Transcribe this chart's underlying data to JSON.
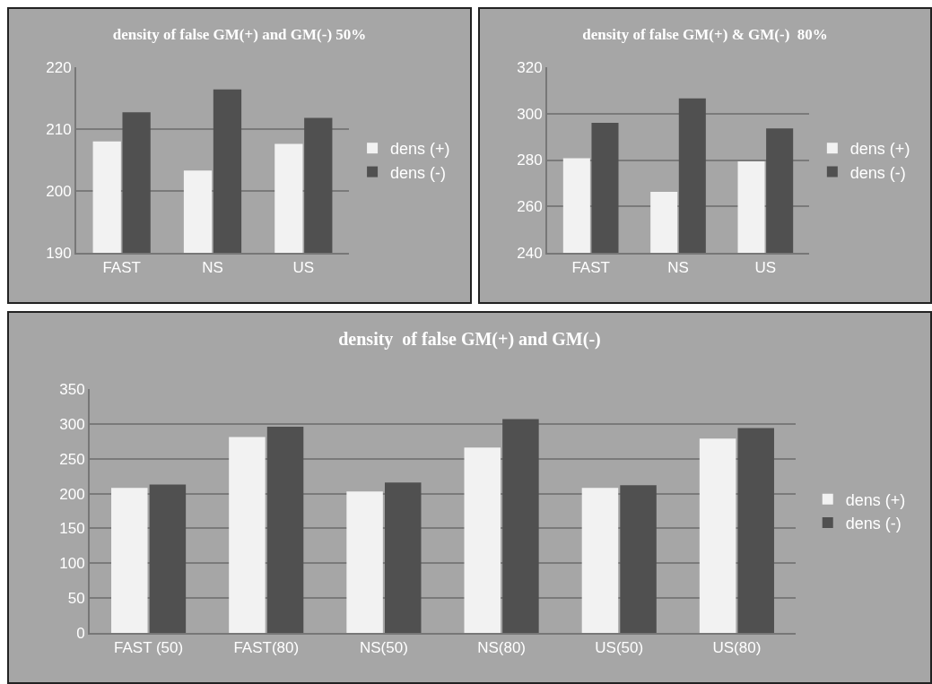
{
  "chart_data": [
    {
      "type": "bar",
      "title": "density of false GM(+) and GM(-) 50%",
      "categories": [
        "FAST",
        "NS",
        "US"
      ],
      "series": [
        {
          "name": "dens (+)",
          "color": "#f2f2f2",
          "values": [
            208,
            203.3,
            207.6
          ]
        },
        {
          "name": "dens (-)",
          "color": "#505050",
          "values": [
            212.7,
            216.4,
            211.8
          ]
        }
      ],
      "ylim": [
        190,
        220
      ],
      "yticks": [
        190,
        200,
        210,
        220
      ],
      "grid": "y",
      "legend": "right"
    },
    {
      "type": "bar",
      "title": "density of false GM(+) & GM(-)  80%",
      "categories": [
        "FAST",
        "NS",
        "US"
      ],
      "series": [
        {
          "name": "dens (+)",
          "color": "#f2f2f2",
          "values": [
            280.8,
            266.3,
            279.4
          ]
        },
        {
          "name": "dens (-)",
          "color": "#505050",
          "values": [
            296,
            306.6,
            293.6
          ]
        }
      ],
      "ylim": [
        240,
        320
      ],
      "yticks": [
        240,
        260,
        280,
        300,
        320
      ],
      "grid": "y",
      "legend": "right"
    },
    {
      "type": "bar",
      "title": "density  of false GM(+) and GM(-)",
      "categories": [
        "FAST (50)",
        "FAST(80)",
        "NS(50)",
        "NS(80)",
        "US(50)",
        "US(80)"
      ],
      "series": [
        {
          "name": "dens (+)",
          "color": "#f2f2f2",
          "values": [
            208,
            281,
            203,
            266,
            208,
            279
          ]
        },
        {
          "name": "dens (-)",
          "color": "#505050",
          "values": [
            213,
            296,
            216,
            307,
            212,
            294
          ]
        }
      ],
      "ylim": [
        0,
        350
      ],
      "yticks": [
        0,
        50,
        100,
        150,
        200,
        250,
        300,
        350
      ],
      "grid": "y",
      "legend": "right"
    }
  ]
}
